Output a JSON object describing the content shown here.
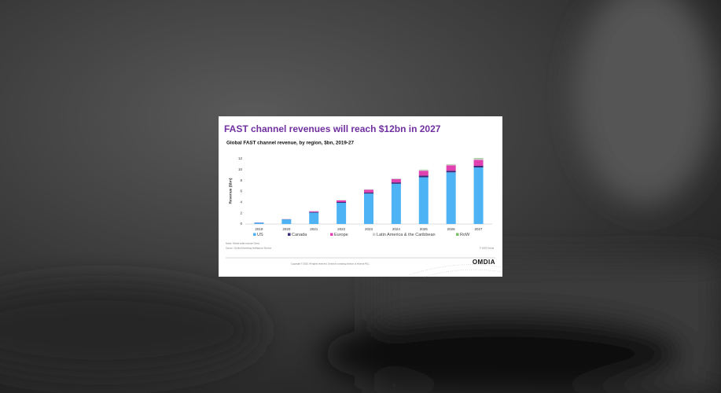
{
  "chart_data": {
    "type": "bar",
    "stacked": true,
    "title": "FAST channel revenues will reach $12bn in 2027",
    "subtitle": "Global FAST channel revenue, by region, $bn, 2019-27",
    "y_label": "Revenue ($bn)",
    "categories": [
      "2019",
      "2020",
      "2021",
      "2022",
      "2023",
      "2024",
      "2025",
      "2026",
      "2027"
    ],
    "series": [
      {
        "name": "US",
        "color": "#4db3f5",
        "values": [
          0.25,
          0.85,
          2.1,
          3.9,
          5.6,
          7.4,
          8.6,
          9.5,
          10.4
        ]
      },
      {
        "name": "Canada",
        "color": "#3b2a78",
        "values": [
          0.02,
          0.03,
          0.1,
          0.15,
          0.2,
          0.25,
          0.3,
          0.3,
          0.3
        ]
      },
      {
        "name": "Europe",
        "color": "#e040b0",
        "values": [
          0.02,
          0.02,
          0.15,
          0.3,
          0.5,
          0.6,
          0.9,
          1.0,
          1.1
        ]
      },
      {
        "name": "Latin America & the Caribbean",
        "color": "#cfcfcf",
        "values": [
          0.01,
          0.01,
          0.05,
          0.05,
          0.1,
          0.15,
          0.15,
          0.15,
          0.2
        ]
      },
      {
        "name": "RoW",
        "color": "#7dc06a",
        "values": [
          0,
          0,
          0,
          0,
          0,
          0,
          0.05,
          0.05,
          0.1
        ]
      }
    ],
    "ylim": [
      0,
      12
    ],
    "yticks": [
      0,
      2,
      4,
      6,
      8,
      10,
      12
    ],
    "grid": false,
    "notes": "Notes: Global totals exclude China",
    "source": "Source: Omdia Advertising Intelligence Service",
    "credit": "© 2023 Omdia",
    "copyright": "Copyright © 2023. All rights reserved. Omdia is a trading division of Informa PLC.",
    "logo": "OMDIA"
  }
}
